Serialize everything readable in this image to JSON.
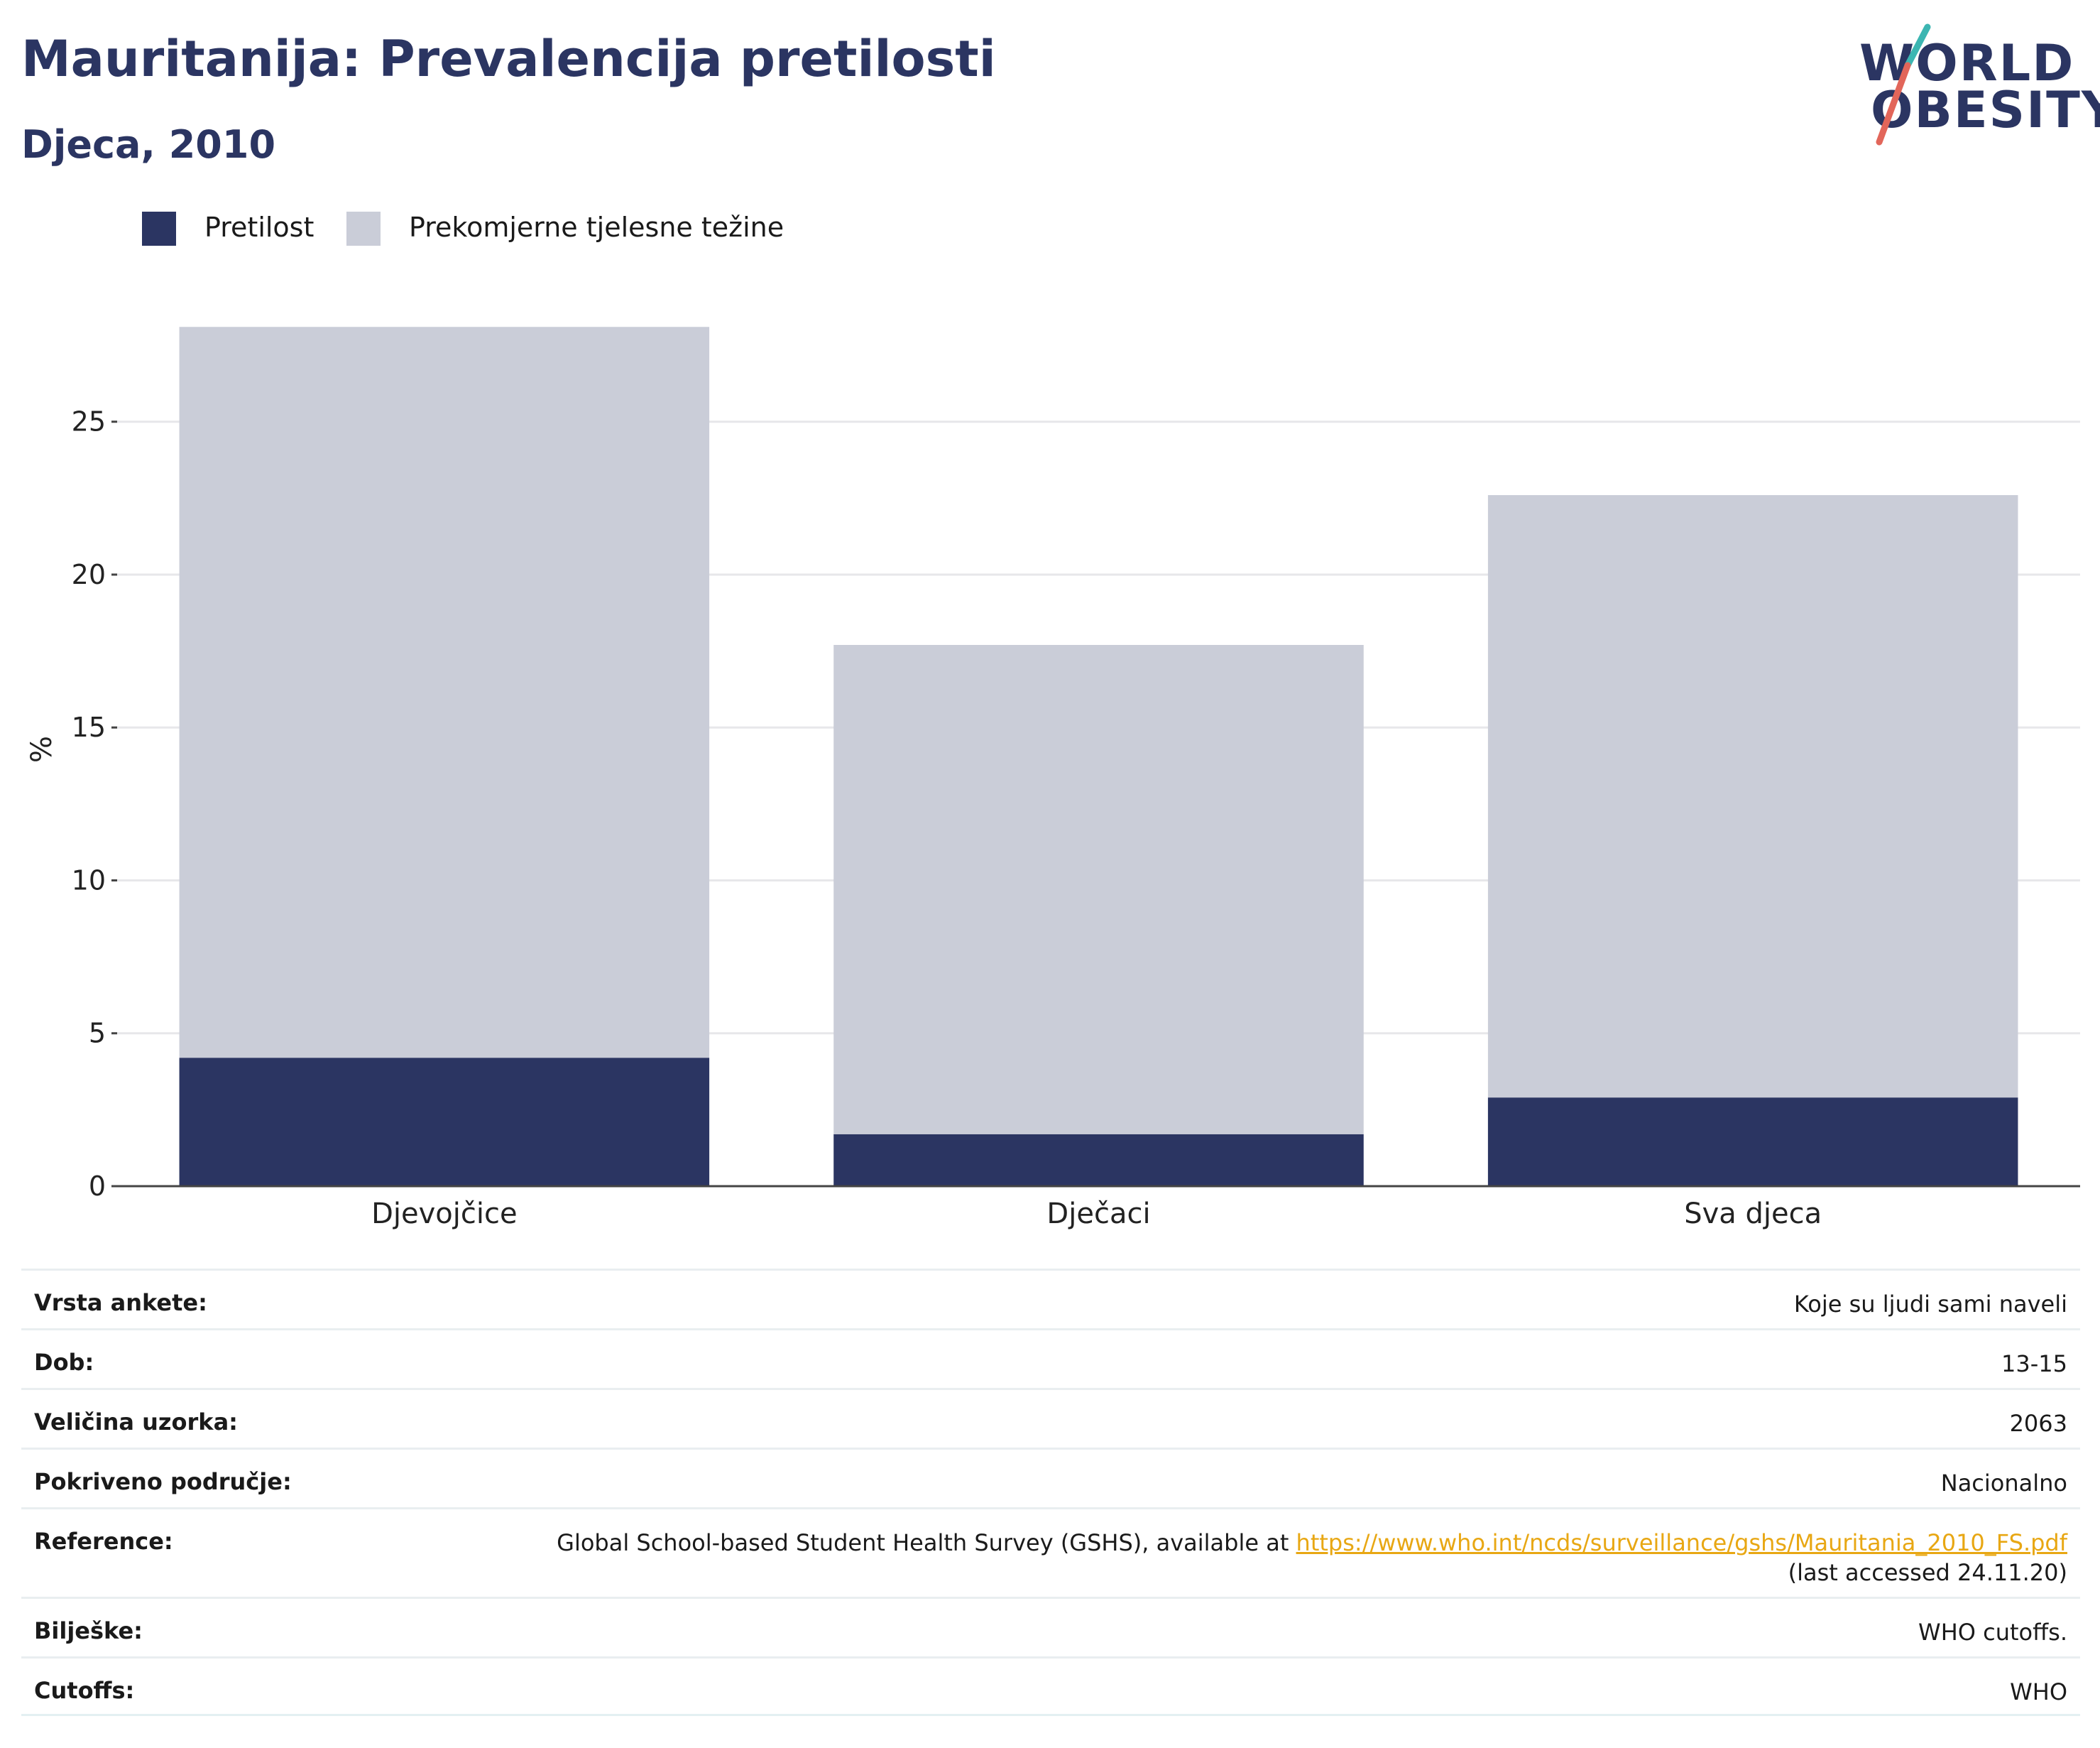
{
  "header": {
    "title": "Mauritanija: Prevalencija pretilosti",
    "subtitle": "Djeca, 2010"
  },
  "logo": {
    "line1": "WORLD",
    "line2": "OBESITY"
  },
  "colors": {
    "obesity": "#2b3562",
    "overweight": "#cacdd8",
    "title": "#2b3562",
    "link": "#e8a713",
    "logo_teal": "#3cb6b2",
    "logo_coral": "#e2665a"
  },
  "legend": [
    {
      "label": "Pretilost",
      "color": "#2b3562"
    },
    {
      "label": "Prekomjerne tjelesne težine",
      "color": "#cacdd8"
    }
  ],
  "chart_data": {
    "type": "bar",
    "stacked": true,
    "categories": [
      "Djevojčice",
      "Dječaci",
      "Sva djeca"
    ],
    "series": [
      {
        "name": "Pretilost",
        "values": [
          4.2,
          1.7,
          2.9
        ],
        "color": "#2b3562"
      },
      {
        "name": "Prekomjerne tjelesne težine",
        "values": [
          23.9,
          16.0,
          19.7
        ],
        "color": "#cacdd8"
      }
    ],
    "ylabel": "%",
    "xlabel": "",
    "yticks": [
      0,
      5,
      10,
      15,
      20,
      25
    ],
    "ylim": [
      0,
      29.5
    ],
    "grid": true,
    "legend_position": "top-left"
  },
  "meta": {
    "rows": [
      {
        "label": "Vrsta ankete:",
        "value": "Koje su ljudi sami naveli"
      },
      {
        "label": "Dob:",
        "value": "13-15"
      },
      {
        "label": "Veličina uzorka:",
        "value": "2063"
      },
      {
        "label": "Pokriveno područje:",
        "value": "Nacionalno"
      },
      {
        "label": "Reference:",
        "value_prefix": "Global School-based Student Health Survey (GSHS), available at ",
        "link": "https://www.who.int/ncds/surveillance/gshs/Mauritania_2010_FS.pdf",
        "value_suffix": "(last accessed 24.11.20)"
      },
      {
        "label": "Bilješke:",
        "value": "WHO cutoffs."
      },
      {
        "label": "Cutoffs:",
        "value": "WHO"
      }
    ]
  }
}
